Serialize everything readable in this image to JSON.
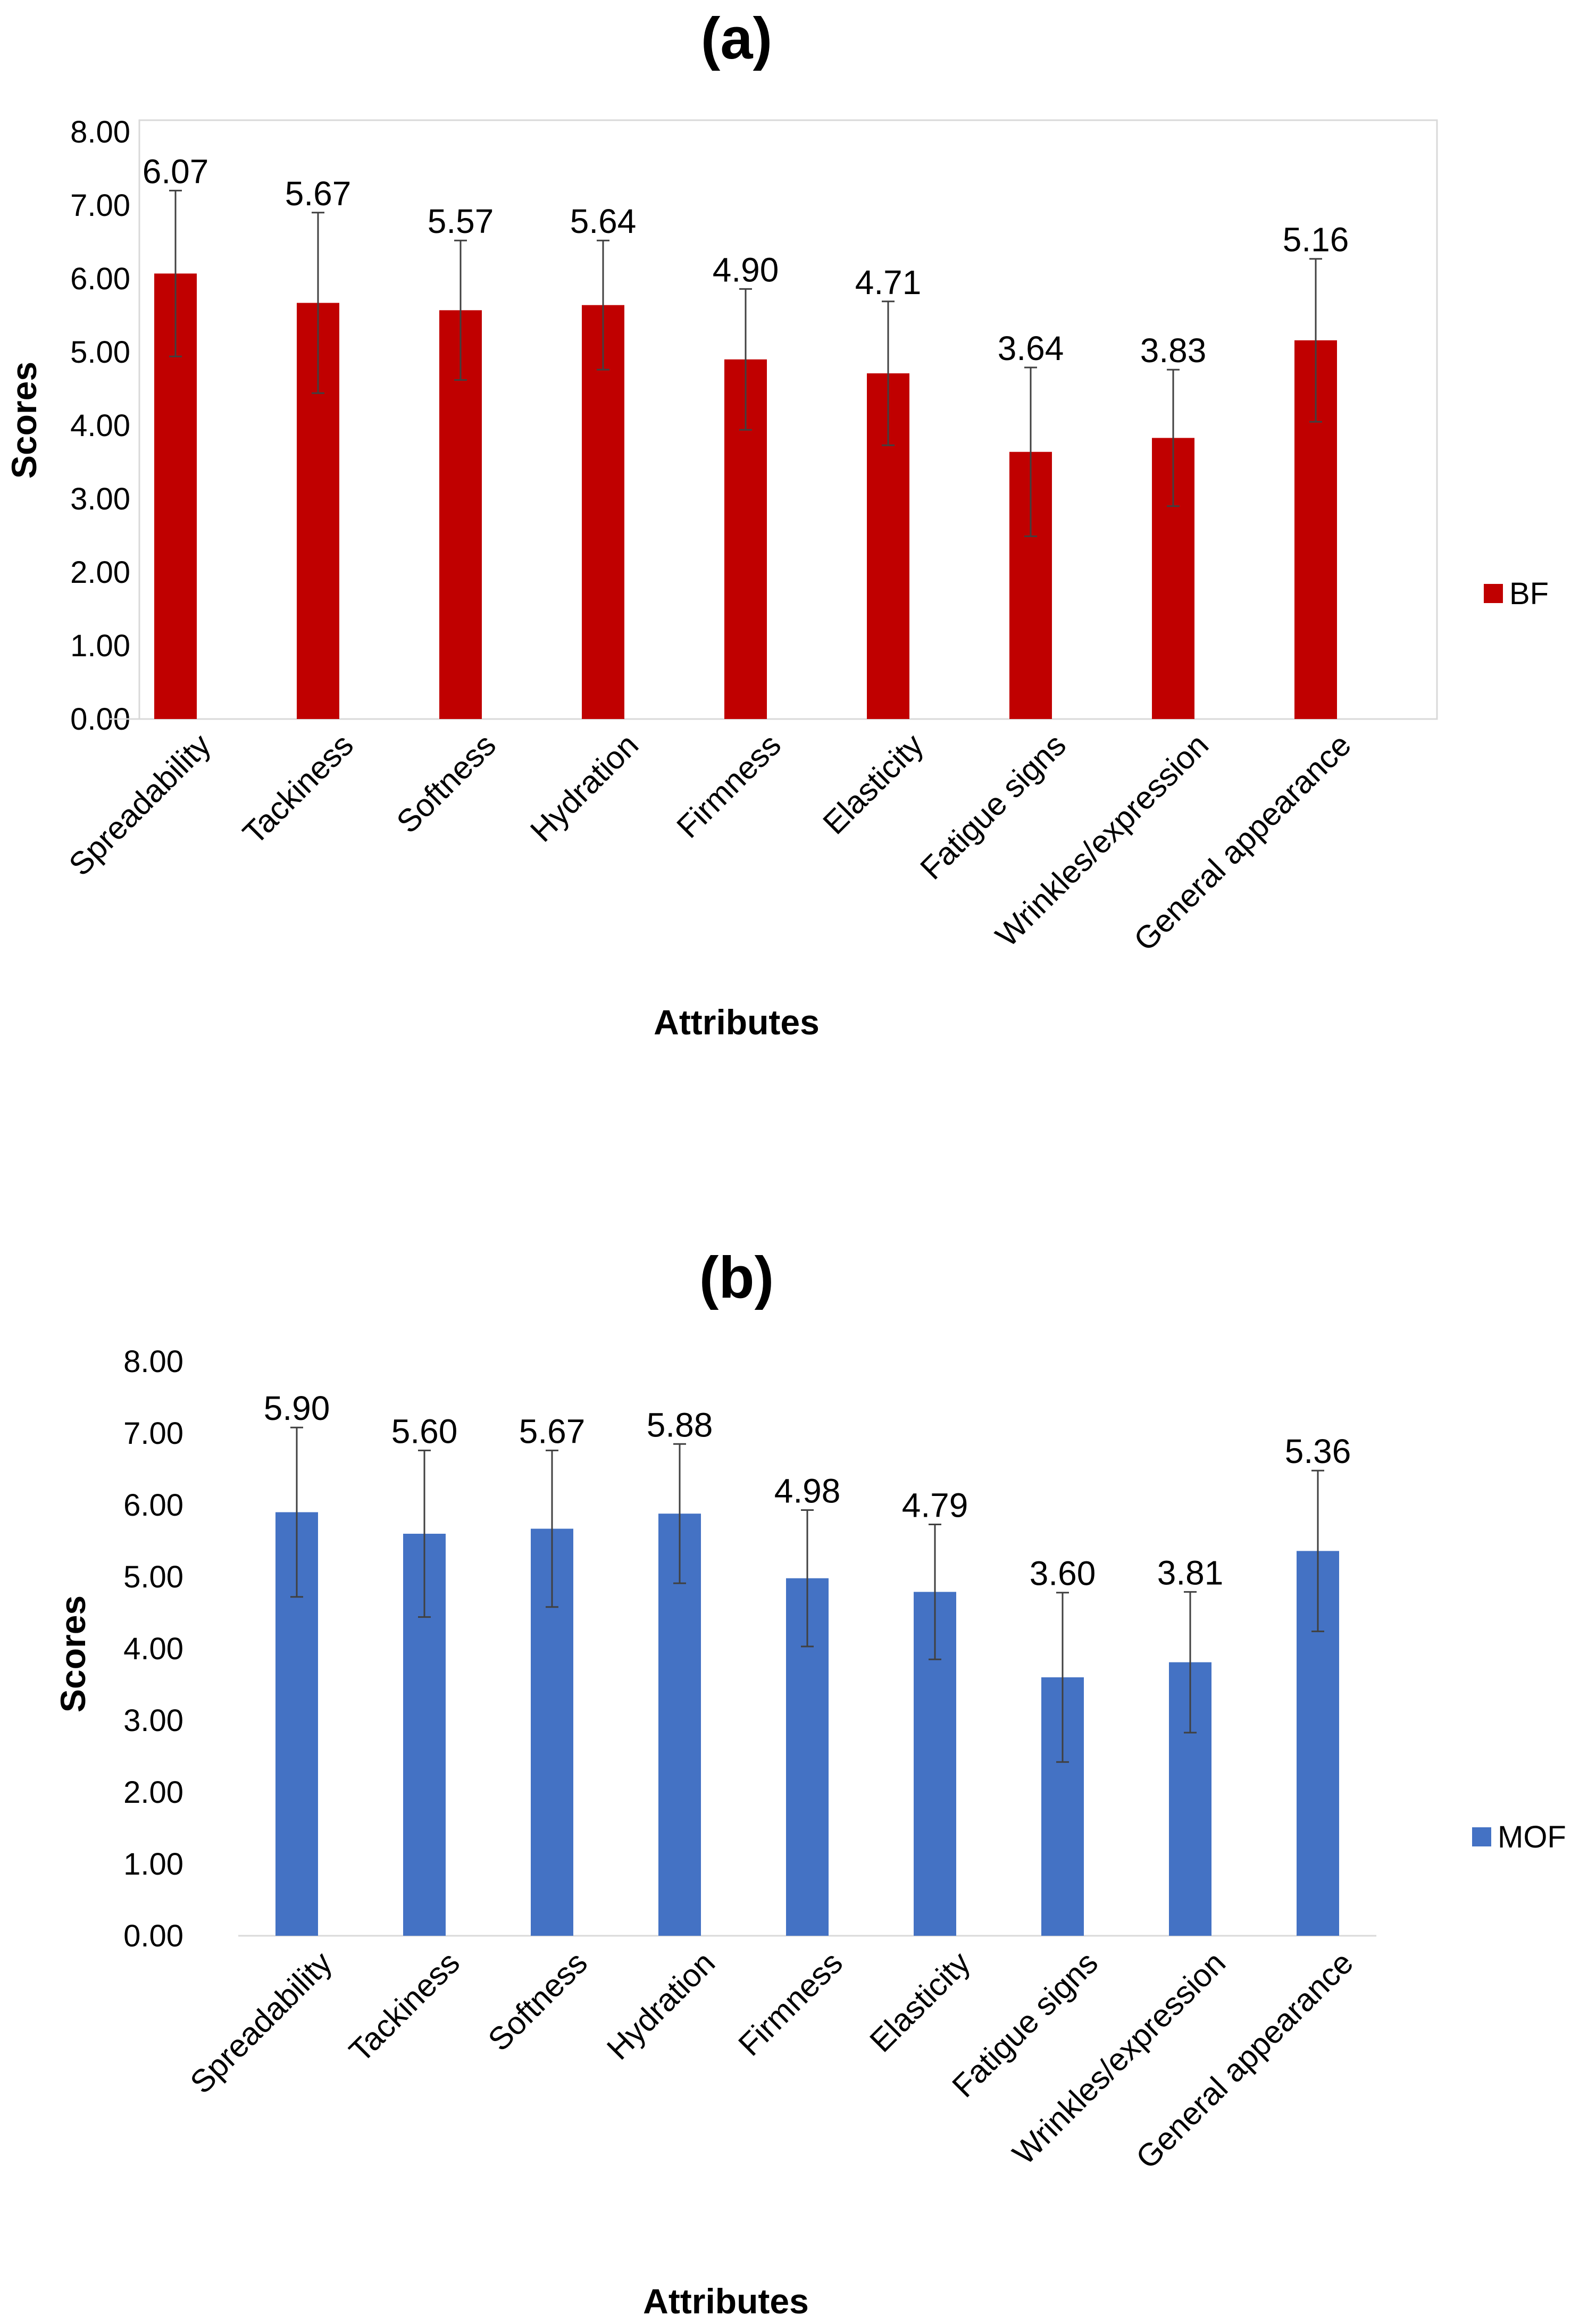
{
  "chart_data": [
    {
      "type": "bar",
      "panel_label": "(a)",
      "categories": [
        "Spreadability",
        "Tackiness",
        "Softness",
        "Hydration",
        "Firmness",
        "Elasticity",
        "Fatigue signs",
        "Wrinkles/expression",
        "General appearance"
      ],
      "series": [
        {
          "name": "BF",
          "color": "#C00000",
          "values": [
            6.07,
            5.67,
            5.57,
            5.64,
            4.9,
            4.71,
            3.64,
            3.83,
            5.16
          ],
          "errors": [
            1.13,
            1.23,
            0.95,
            0.88,
            0.96,
            0.98,
            1.15,
            0.93,
            1.11
          ],
          "data_labels": [
            "6.07",
            "5.67",
            "5.57",
            "5.64",
            "4.90",
            "4.71",
            "3.64",
            "3.83",
            "5.16"
          ]
        }
      ],
      "xlabel": "Attributes",
      "ylabel": "Scores",
      "ylim": [
        0,
        8
      ],
      "yticks": [
        "0.00",
        "1.00",
        "2.00",
        "3.00",
        "4.00",
        "5.00",
        "6.00",
        "7.00",
        "8.00"
      ],
      "legend_position": "right",
      "grid": false
    },
    {
      "type": "bar",
      "panel_label": "(b)",
      "categories": [
        "Spreadability",
        "Tackiness",
        "Softness",
        "Hydration",
        "Firmness",
        "Elasticity",
        "Fatigue signs",
        "Wrinkles/expression",
        "General appearance"
      ],
      "series": [
        {
          "name": "MOF",
          "color": "#4472C4",
          "values": [
            5.9,
            5.6,
            5.67,
            5.88,
            4.98,
            4.79,
            3.6,
            3.81,
            5.36
          ],
          "errors": [
            1.18,
            1.16,
            1.09,
            0.97,
            0.95,
            0.94,
            1.18,
            0.98,
            1.12
          ],
          "data_labels": [
            "5.90",
            "5.60",
            "5.67",
            "5.88",
            "4.98",
            "4.79",
            "3.60",
            "3.81",
            "5.36"
          ]
        }
      ],
      "xlabel": "Attributes",
      "ylabel": "Scores",
      "ylim": [
        0,
        8
      ],
      "yticks": [
        "0.00",
        "1.00",
        "2.00",
        "3.00",
        "4.00",
        "5.00",
        "6.00",
        "7.00",
        "8.00"
      ],
      "legend_position": "right",
      "grid": false
    }
  ]
}
